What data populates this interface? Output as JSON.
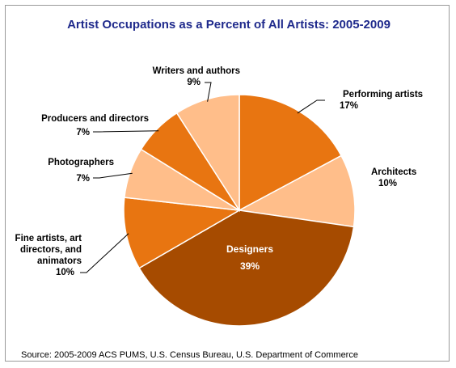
{
  "chart_data": {
    "type": "pie",
    "title": "Artist Occupations as a Percent of All Artists: 2005-2009",
    "slices": [
      {
        "label": "Performing artists",
        "value": 17,
        "color": "#E87511"
      },
      {
        "label": "Architects",
        "value": 10,
        "color": "#FFBE8A"
      },
      {
        "label": "Designers",
        "value": 39,
        "color": "#A64B00"
      },
      {
        "label": "Fine artists, art directors, and animators",
        "value": 10,
        "color": "#E87511"
      },
      {
        "label": "Photographers",
        "value": 7,
        "color": "#FFBE8A"
      },
      {
        "label": "Producers and directors",
        "value": 7,
        "color": "#E87511"
      },
      {
        "label": "Writers and authors",
        "value": 9,
        "color": "#FFBE8A"
      }
    ],
    "value_labels": [
      "17%",
      "10%",
      "39%",
      "10%",
      "7%",
      "7%",
      "9%"
    ],
    "source": "Source: 2005-2009 ACS PUMS, U.S. Census Bureau, U.S. Department of Commerce"
  }
}
